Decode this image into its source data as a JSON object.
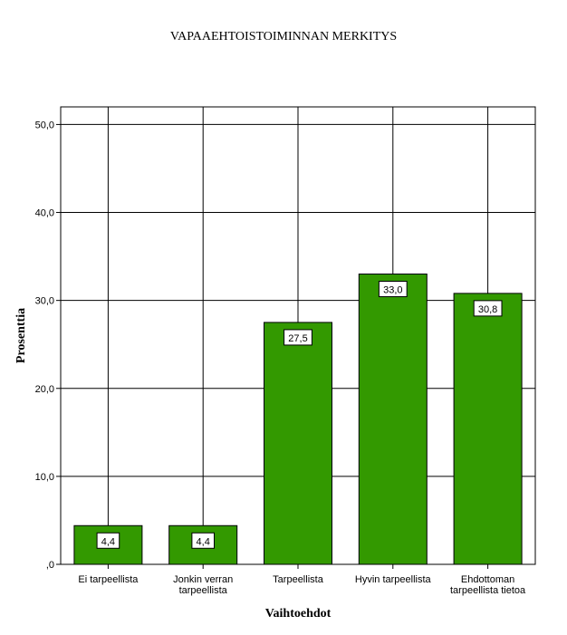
{
  "chart_data": {
    "type": "bar",
    "title": "VAPAAEHTOISTOIMINNAN MERKITYS",
    "xlabel": "Vaihtoehdot",
    "ylabel": "Prosenttia",
    "categories": [
      [
        "Ei tarpeellista"
      ],
      [
        "Jonkin verran",
        "tarpeellista"
      ],
      [
        "Tarpeellista"
      ],
      [
        "Hyvin tarpeellista"
      ],
      [
        "Ehdottoman",
        "tarpeellista tietoa"
      ]
    ],
    "values": [
      4.4,
      4.4,
      27.5,
      33.0,
      30.8
    ],
    "value_labels": [
      "4,4",
      "4,4",
      "27,5",
      "33,0",
      "30,8"
    ],
    "ylim": [
      0,
      52
    ],
    "yticks": [
      0,
      10,
      20,
      30,
      40,
      50
    ],
    "ytick_labels": [
      ",0",
      "10,0",
      "20,0",
      "30,0",
      "40,0",
      "50,0"
    ],
    "grid": true,
    "bar_color": "#339900"
  }
}
